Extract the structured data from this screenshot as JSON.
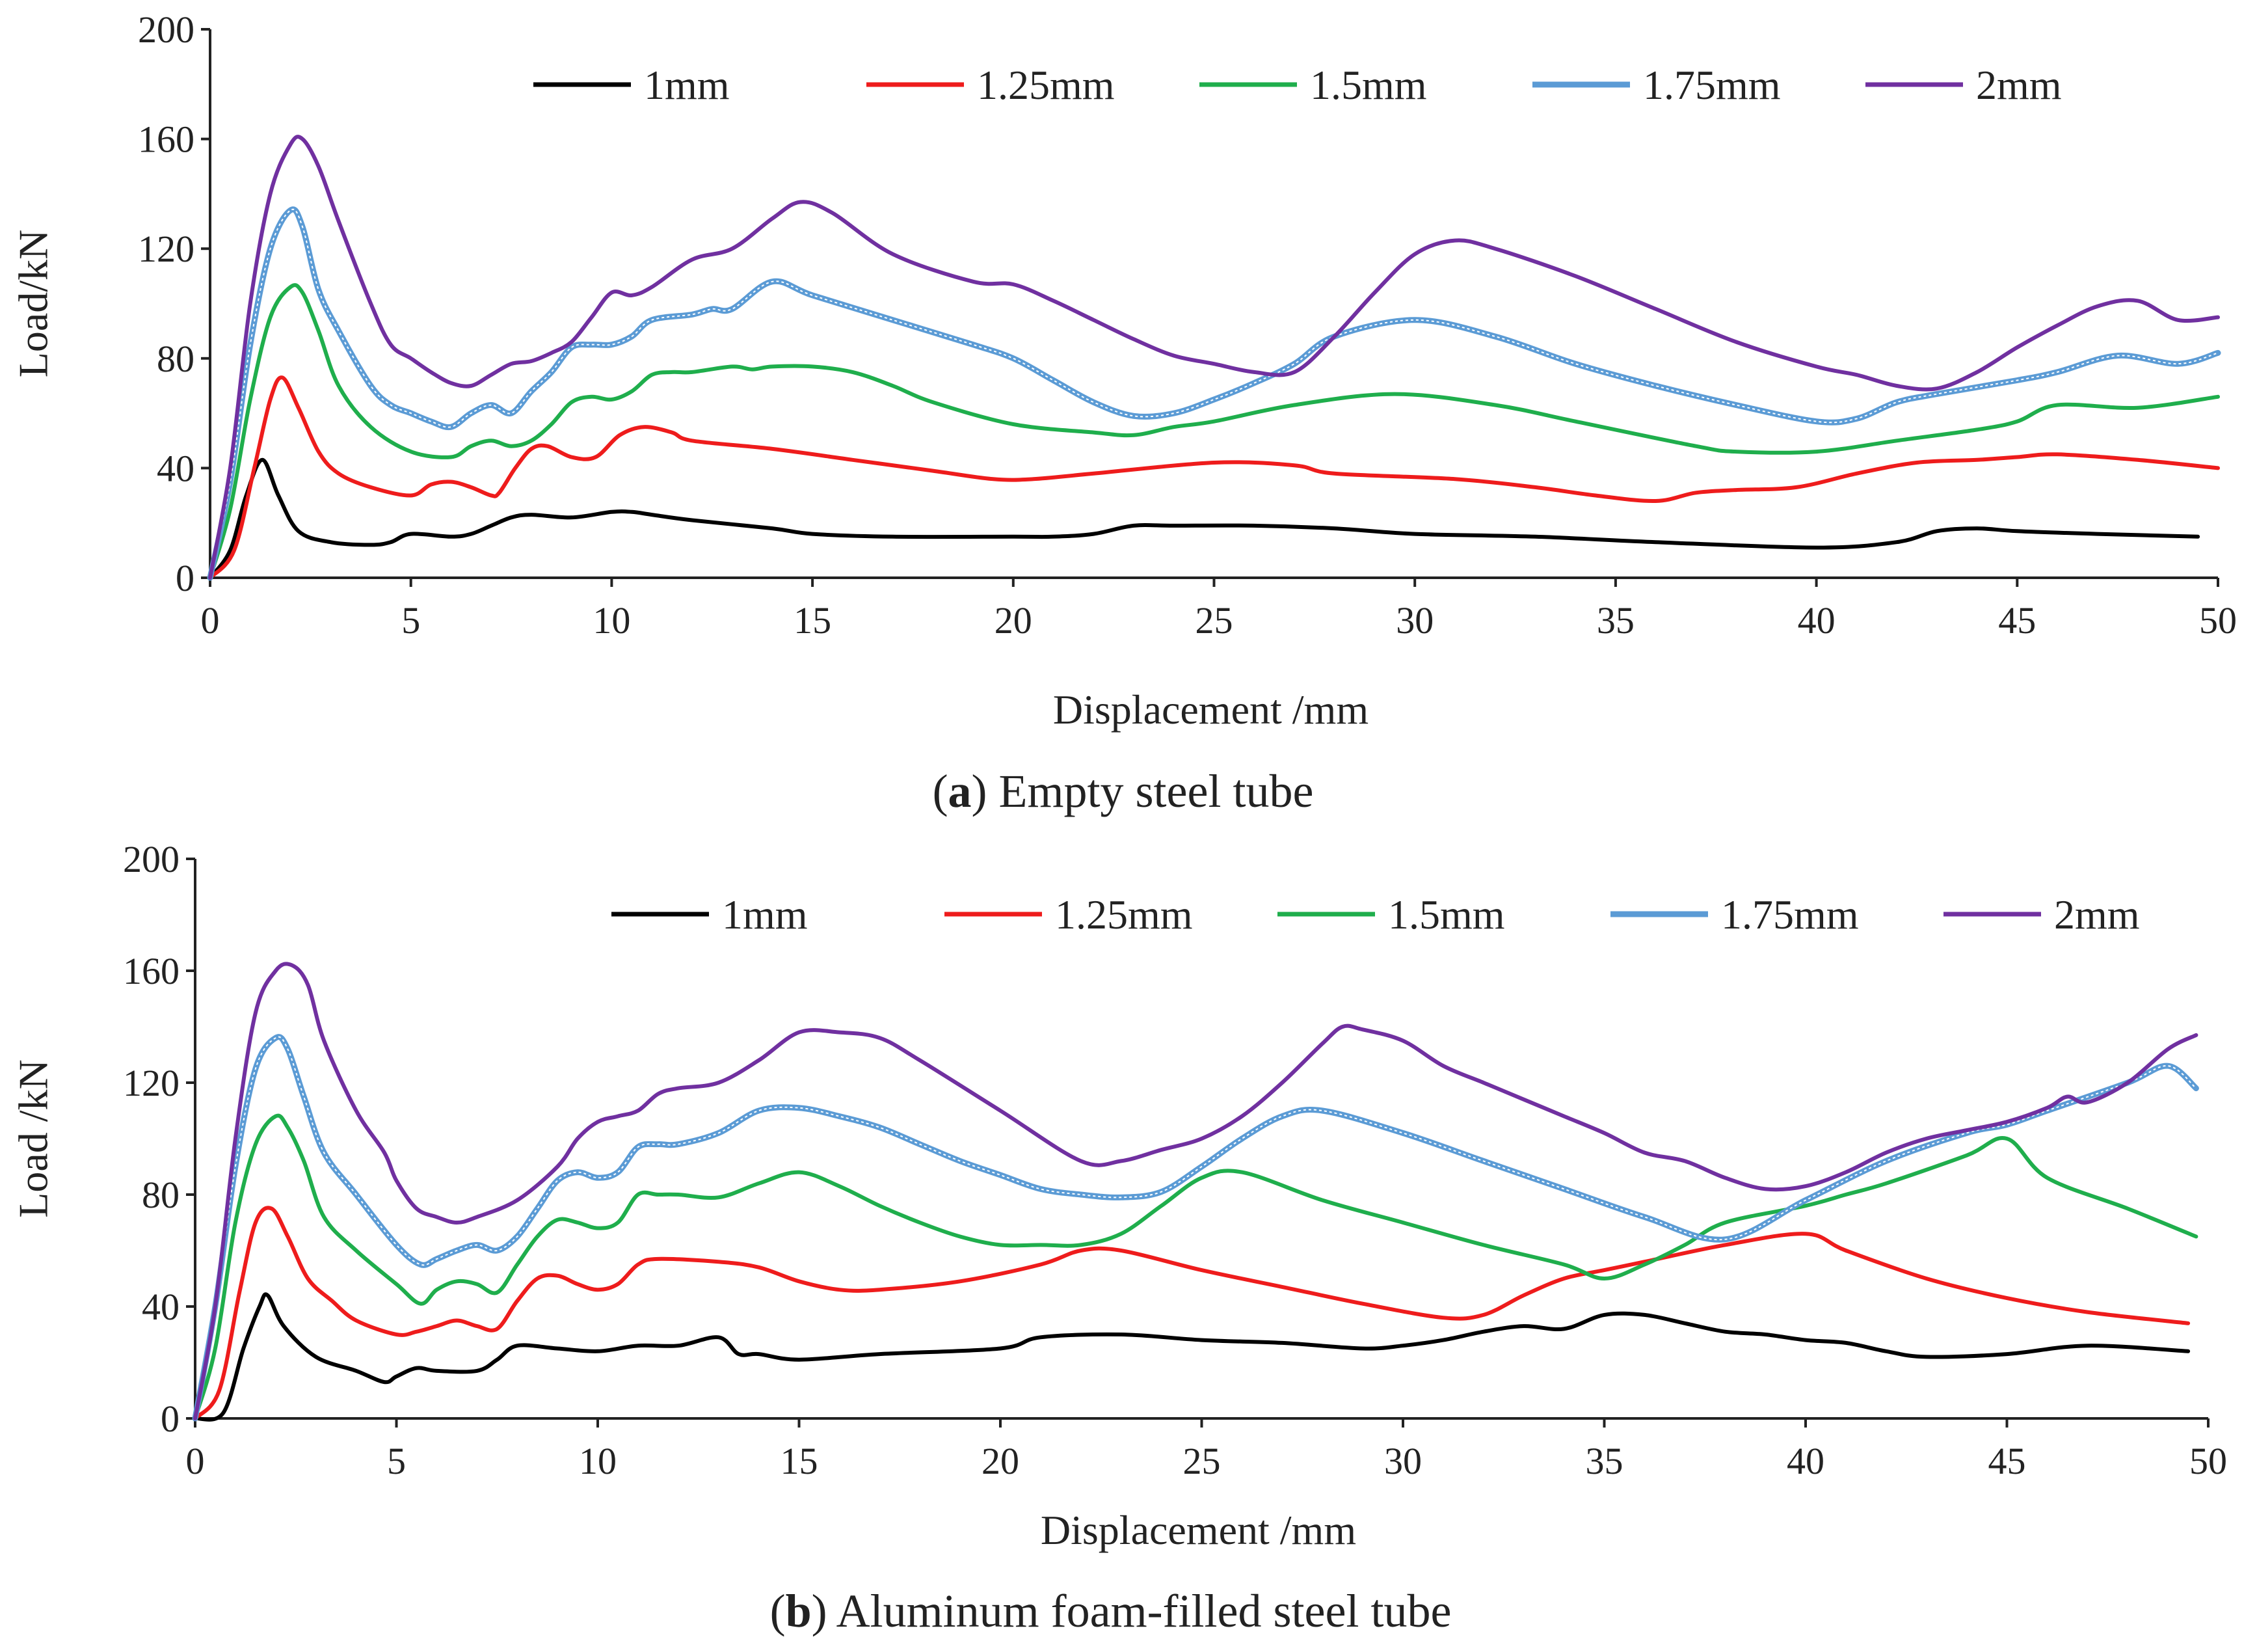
{
  "chart_data": [
    {
      "type": "line",
      "caption_letter": "a",
      "caption_text": "Empty steel tube",
      "xlabel": "Displacement  /mm",
      "ylabel": "Load/kN",
      "xlim": [
        0,
        50
      ],
      "ylim": [
        0,
        200
      ],
      "xticks": [
        0,
        5,
        10,
        15,
        20,
        25,
        30,
        35,
        40,
        45,
        50
      ],
      "yticks": [
        0,
        40,
        80,
        120,
        160,
        200
      ],
      "legend_position": "top",
      "series": [
        {
          "name": "1mm",
          "color": "#000000",
          "x": [
            0,
            0.5,
            0.9,
            1.3,
            1.7,
            2.2,
            3,
            4,
            4.5,
            5,
            6,
            6.5,
            7,
            7.5,
            8,
            9,
            10,
            10.5,
            11,
            12,
            14,
            15,
            17,
            20,
            21,
            22,
            23,
            24,
            26,
            28,
            30,
            33,
            36,
            40,
            42,
            43,
            44,
            45,
            47,
            49.5
          ],
          "values": [
            0,
            10,
            30,
            43,
            30,
            17,
            13,
            12,
            13,
            16,
            15,
            16,
            19,
            22,
            23,
            22,
            24,
            24,
            23,
            21,
            18,
            16,
            15,
            15,
            15,
            16,
            19,
            19,
            19,
            18,
            16,
            15,
            13,
            11,
            13,
            17,
            18,
            17,
            16,
            15
          ]
        },
        {
          "name": "1.25mm",
          "color": "#ee1c1c",
          "x": [
            0,
            0.6,
            1.1,
            1.5,
            1.8,
            2.2,
            2.7,
            3.2,
            4,
            5,
            5.5,
            6,
            6.5,
            7,
            7.2,
            7.6,
            8,
            8.4,
            9,
            9.6,
            10.2,
            10.8,
            11.5,
            12,
            14,
            16,
            18,
            19.5,
            20.5,
            22,
            25,
            27,
            28,
            31,
            33,
            34.5,
            36,
            37,
            38,
            39.5,
            41,
            42.5,
            44,
            45,
            46,
            48,
            50
          ],
          "values": [
            0,
            10,
            40,
            65,
            73,
            62,
            46,
            38,
            33,
            30,
            34,
            35,
            33,
            30,
            31,
            40,
            47,
            48,
            44,
            44,
            52,
            55,
            53,
            50,
            47,
            43,
            39,
            36,
            36,
            38,
            42,
            41,
            38,
            36,
            33,
            30,
            28,
            31,
            32,
            33,
            38,
            42,
            43,
            44,
            45,
            43,
            40
          ]
        },
        {
          "name": "1.5mm",
          "color": "#1fae4c",
          "x": [
            0,
            0.5,
            1,
            1.5,
            2,
            2.3,
            2.7,
            3.2,
            4,
            5,
            6,
            6.5,
            7,
            7.5,
            8,
            8.5,
            9,
            9.5,
            10,
            10.5,
            11,
            11.5,
            12,
            13,
            13.5,
            14,
            15,
            16,
            17,
            18,
            20,
            22,
            23,
            24,
            25,
            27,
            29.5,
            32,
            34,
            37,
            38,
            40,
            42,
            44,
            45,
            46,
            48,
            50
          ],
          "values": [
            0,
            25,
            65,
            95,
            106,
            104,
            90,
            70,
            55,
            46,
            44,
            48,
            50,
            48,
            50,
            56,
            64,
            66,
            65,
            68,
            74,
            75,
            75,
            77,
            76,
            77,
            77,
            75,
            70,
            64,
            56,
            53,
            52,
            55,
            57,
            63,
            67,
            63,
            57,
            48,
            46,
            46,
            50,
            54,
            57,
            63,
            62,
            66
          ]
        },
        {
          "name": "1.75mm",
          "color": "#5b9bd5",
          "x": [
            0,
            0.5,
            1,
            1.5,
            2,
            2.3,
            2.7,
            3.2,
            4,
            4.5,
            5,
            5.5,
            6,
            6.5,
            7,
            7.5,
            8,
            8.5,
            9,
            9.5,
            10,
            10.5,
            11,
            12,
            12.5,
            13,
            14,
            15,
            17,
            19,
            20,
            21,
            22,
            23,
            24,
            25,
            26,
            27,
            28,
            30,
            32,
            34,
            36,
            38,
            40,
            41,
            42,
            43,
            45,
            46,
            47.5,
            49,
            50
          ],
          "values": [
            0,
            35,
            85,
            120,
            134,
            128,
            105,
            90,
            70,
            63,
            60,
            57,
            55,
            60,
            63,
            60,
            68,
            75,
            84,
            85,
            85,
            88,
            94,
            96,
            98,
            98,
            108,
            103,
            94,
            85,
            80,
            72,
            64,
            59,
            60,
            65,
            71,
            78,
            88,
            94,
            88,
            78,
            70,
            63,
            57,
            58,
            64,
            67,
            72,
            75,
            81,
            78,
            82
          ]
        },
        {
          "name": "2mm",
          "color": "#7030a0",
          "x": [
            0,
            0.5,
            1,
            1.5,
            2,
            2.3,
            2.7,
            3.2,
            4,
            4.5,
            5,
            5.5,
            6,
            6.5,
            7,
            7.5,
            8,
            8.5,
            9,
            9.5,
            10,
            10.5,
            11,
            12,
            13,
            14,
            14.7,
            15.5,
            17,
            19,
            20,
            21,
            22,
            23,
            24,
            25,
            26,
            27,
            28,
            29,
            30,
            31,
            32,
            34,
            36,
            38,
            40,
            41,
            42,
            43,
            44,
            45,
            46,
            47,
            48,
            49,
            50
          ],
          "values": [
            0,
            40,
            100,
            140,
            158,
            160,
            150,
            130,
            100,
            85,
            80,
            75,
            71,
            70,
            74,
            78,
            79,
            82,
            86,
            95,
            104,
            103,
            106,
            116,
            120,
            131,
            137,
            133,
            118,
            108,
            107,
            101,
            94,
            87,
            81,
            78,
            75,
            75,
            88,
            104,
            118,
            123,
            120,
            110,
            98,
            86,
            77,
            74,
            70,
            69,
            75,
            84,
            92,
            99,
            101,
            94,
            95
          ]
        }
      ]
    },
    {
      "type": "line",
      "caption_letter": "b",
      "caption_text": "Aluminum foam-filled steel tube",
      "xlabel": "Displacement  /mm",
      "ylabel": "Load /kN",
      "xlim": [
        0,
        50
      ],
      "ylim": [
        0,
        200
      ],
      "xticks": [
        0,
        5,
        10,
        15,
        20,
        25,
        30,
        35,
        40,
        45,
        50
      ],
      "yticks": [
        0,
        40,
        80,
        120,
        160,
        200
      ],
      "legend_position": "top",
      "series": [
        {
          "name": "1mm",
          "color": "#000000",
          "x": [
            0,
            0.7,
            1.2,
            1.6,
            1.8,
            2.2,
            3,
            4,
            4.7,
            5,
            5.5,
            6,
            7,
            7.5,
            8,
            9,
            10,
            11,
            12,
            13,
            13.5,
            14,
            15,
            17,
            20,
            21,
            23,
            25,
            27,
            29,
            30,
            31,
            32,
            33,
            34,
            35,
            36,
            37,
            38,
            39,
            40,
            41,
            42,
            43,
            45,
            47,
            49.5
          ],
          "values": [
            0,
            2,
            25,
            40,
            44,
            33,
            22,
            17,
            13,
            15,
            18,
            17,
            17,
            21,
            26,
            25,
            24,
            26,
            26,
            29,
            23,
            23,
            21,
            23,
            25,
            29,
            30,
            28,
            27,
            25,
            26,
            28,
            31,
            33,
            32,
            37,
            37,
            34,
            31,
            30,
            28,
            27,
            24,
            22,
            23,
            26,
            24
          ]
        },
        {
          "name": "1.25mm",
          "color": "#ee1c1c",
          "x": [
            0,
            0.6,
            1.1,
            1.5,
            1.9,
            2.3,
            2.8,
            3.4,
            4,
            5,
            5.5,
            6,
            6.5,
            7,
            7.5,
            8,
            8.5,
            9,
            9.5,
            10,
            10.5,
            11,
            11.5,
            13,
            14,
            15,
            16,
            17,
            19,
            21,
            22,
            23,
            25,
            27,
            29,
            31,
            32,
            33,
            34,
            35,
            36,
            38,
            40,
            41,
            43,
            45,
            47,
            49.5
          ],
          "values": [
            0,
            10,
            45,
            70,
            75,
            65,
            50,
            42,
            35,
            30,
            31,
            33,
            35,
            33,
            32,
            42,
            50,
            51,
            48,
            46,
            48,
            55,
            57,
            56,
            54,
            49,
            46,
            46,
            49,
            55,
            60,
            60,
            53,
            47,
            41,
            36,
            37,
            44,
            50,
            53,
            56,
            62,
            66,
            60,
            50,
            43,
            38,
            34
          ]
        },
        {
          "name": "1.5mm",
          "color": "#1fae4c",
          "x": [
            0,
            0.5,
            1,
            1.5,
            2,
            2.3,
            2.7,
            3.2,
            4,
            5,
            5.6,
            6,
            6.5,
            7,
            7.5,
            8,
            8.5,
            9,
            9.5,
            10,
            10.5,
            11,
            11.5,
            12,
            13,
            14,
            15,
            16,
            17,
            18,
            19,
            20,
            21,
            22,
            23,
            24,
            25,
            26,
            28,
            30,
            32,
            34,
            35,
            36,
            37,
            38,
            40,
            41,
            42,
            44,
            45,
            46,
            48,
            49.7
          ],
          "values": [
            0,
            25,
            70,
            98,
            108,
            104,
            92,
            72,
            60,
            48,
            41,
            46,
            49,
            48,
            45,
            55,
            65,
            71,
            70,
            68,
            70,
            80,
            80,
            80,
            79,
            84,
            88,
            83,
            76,
            70,
            65,
            62,
            62,
            62,
            66,
            76,
            86,
            88,
            78,
            70,
            62,
            55,
            50,
            55,
            62,
            70,
            76,
            80,
            84,
            94,
            100,
            86,
            75,
            65
          ]
        },
        {
          "name": "1.75mm",
          "color": "#5b9bd5",
          "x": [
            0,
            0.5,
            1,
            1.5,
            2,
            2.3,
            2.7,
            3.2,
            4,
            5,
            5.6,
            6,
            6.5,
            7,
            7.5,
            8,
            8.5,
            9,
            9.5,
            10,
            10.5,
            11,
            11.5,
            12,
            13,
            14,
            15,
            16,
            17,
            18,
            19,
            20,
            21,
            22,
            23,
            24,
            25,
            26,
            27,
            28,
            30,
            32,
            34,
            36,
            38,
            40,
            42,
            44,
            45,
            46,
            48,
            49,
            49.7
          ],
          "values": [
            0,
            40,
            90,
            125,
            136,
            132,
            115,
            95,
            80,
            62,
            55,
            57,
            60,
            62,
            60,
            65,
            75,
            85,
            88,
            86,
            88,
            97,
            98,
            98,
            102,
            110,
            111,
            108,
            104,
            98,
            92,
            87,
            82,
            80,
            79,
            81,
            90,
            100,
            108,
            110,
            102,
            92,
            82,
            72,
            64,
            78,
            92,
            102,
            105,
            110,
            120,
            126,
            118
          ]
        },
        {
          "name": "2mm",
          "color": "#7030a0",
          "x": [
            0,
            0.5,
            1,
            1.5,
            2,
            2.4,
            2.8,
            3.2,
            4,
            4.7,
            5,
            5.5,
            6,
            6.5,
            7,
            8,
            9,
            9.5,
            10,
            10.5,
            11,
            11.5,
            12,
            13,
            14,
            15,
            16,
            17,
            18,
            20,
            22,
            23,
            24,
            25,
            26,
            27,
            28,
            28.5,
            29,
            30,
            31,
            32,
            33,
            34,
            35,
            36,
            37,
            38,
            39,
            40,
            41,
            42,
            43,
            44,
            45,
            46,
            46.5,
            47,
            48,
            49,
            49.7
          ],
          "values": [
            0,
            40,
            100,
            145,
            160,
            162,
            155,
            135,
            110,
            95,
            85,
            75,
            72,
            70,
            72,
            78,
            90,
            100,
            106,
            108,
            110,
            116,
            118,
            120,
            128,
            138,
            138,
            136,
            128,
            110,
            92,
            92,
            96,
            100,
            108,
            120,
            134,
            140,
            139,
            135,
            126,
            120,
            114,
            108,
            102,
            95,
            92,
            86,
            82,
            83,
            88,
            95,
            100,
            103,
            106,
            111,
            115,
            113,
            120,
            132,
            137
          ]
        }
      ]
    }
  ]
}
